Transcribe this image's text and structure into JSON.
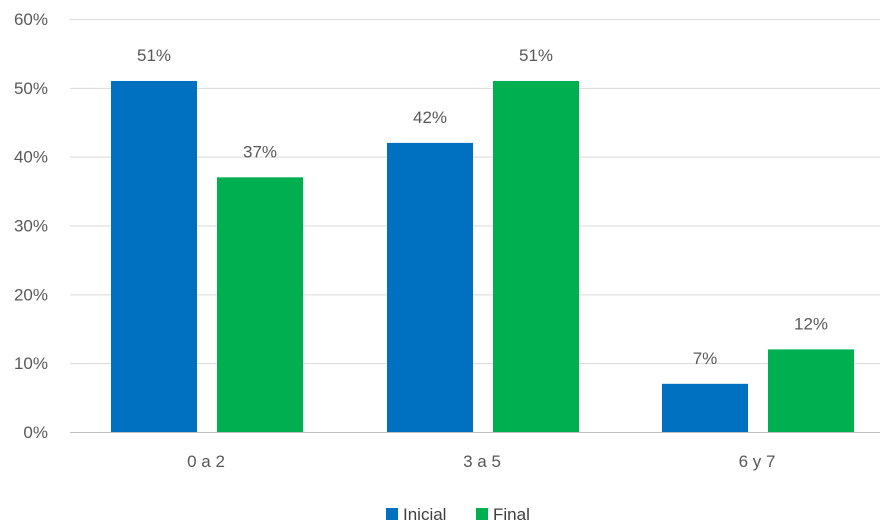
{
  "chart_data": {
    "type": "bar",
    "categories": [
      "0 a 2",
      "3 a 5",
      "6 y 7"
    ],
    "series": [
      {
        "name": "Inicial",
        "color": "#0070c0",
        "values": [
          51,
          42,
          7
        ],
        "labels": [
          "51%",
          "42%",
          "7%"
        ]
      },
      {
        "name": "Final",
        "color": "#00b050",
        "values": [
          37,
          51,
          12
        ],
        "labels": [
          "37%",
          "51%",
          "12%"
        ]
      }
    ],
    "ylim": [
      0,
      60
    ],
    "yticks": [
      0,
      10,
      20,
      30,
      40,
      50,
      60
    ],
    "ytick_labels": [
      "0%",
      "10%",
      "20%",
      "30%",
      "40%",
      "50%",
      "60%"
    ],
    "grid": true,
    "legend_position": "bottom"
  }
}
